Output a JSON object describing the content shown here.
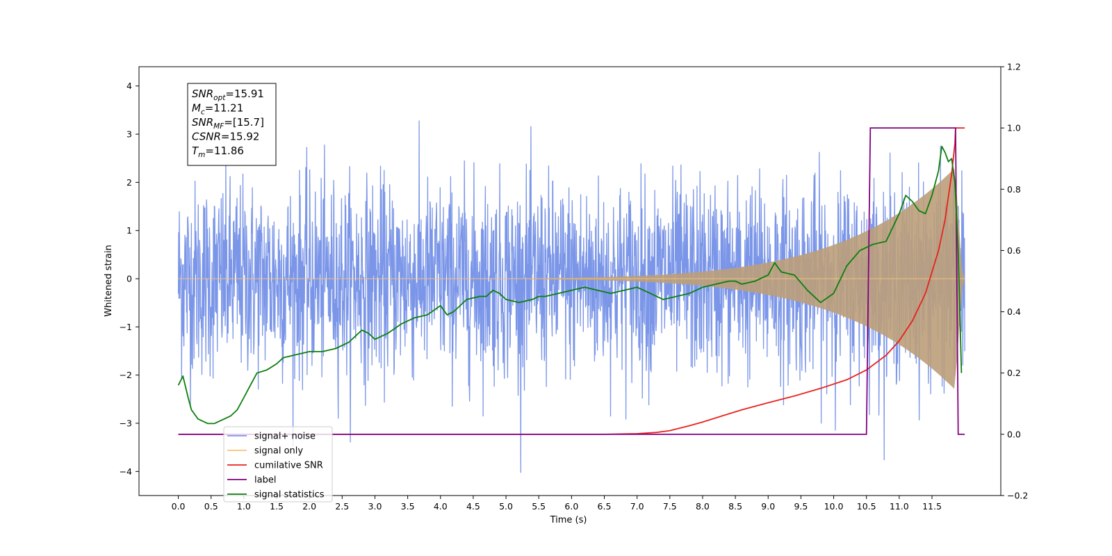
{
  "chart_data": {
    "type": "line",
    "xlabel": "Time (s)",
    "ylabel": "Whitened strain",
    "xlim": [
      -0.6,
      12.55
    ],
    "ylim": [
      -4.5,
      4.4
    ],
    "y2lim": [
      -0.2,
      1.2
    ],
    "x_ticks": [
      0.0,
      0.5,
      1.0,
      1.5,
      2.0,
      2.5,
      3.0,
      3.5,
      4.0,
      4.5,
      5.0,
      5.5,
      6.0,
      6.5,
      7.0,
      7.5,
      8.0,
      8.5,
      9.0,
      9.5,
      10.0,
      10.5,
      11.0,
      11.5
    ],
    "x_tick_labels": [
      "0.0",
      "0.5",
      "1.0",
      "1.5",
      "2.0",
      "2.5",
      "3.0",
      "3.5",
      "4.0",
      "4.5",
      "5.0",
      "5.5",
      "6.0",
      "6.5",
      "7.0",
      "7.5",
      "8.0",
      "8.5",
      "9.0",
      "9.5",
      "10.0",
      "10.5",
      "11.0",
      "11.5"
    ],
    "y_ticks": [
      -4,
      -3,
      -2,
      -1,
      0,
      1,
      2,
      3,
      4
    ],
    "y_tick_labels": [
      "−4",
      "−3",
      "−2",
      "−1",
      "0",
      "1",
      "2",
      "3",
      "4"
    ],
    "y2_ticks": [
      -0.2,
      0.0,
      0.2,
      0.4,
      0.6,
      0.8,
      1.0,
      1.2
    ],
    "y2_tick_labels": [
      "−0.2",
      "0.0",
      "0.2",
      "0.4",
      "0.6",
      "0.8",
      "1.0",
      "1.2"
    ],
    "grid": false,
    "legend_position": "lower-left",
    "annotation": {
      "lines": [
        {
          "name": "SNR",
          "sub": "opt",
          "value": "=15.91"
        },
        {
          "name": "M",
          "sub": "c",
          "value": "=11.21"
        },
        {
          "name": "SNR",
          "sub": "MF",
          "value": "=[15.7]"
        },
        {
          "name": "CSNR",
          "sub": "",
          "value": "=15.92"
        },
        {
          "name": "T",
          "sub": "m",
          "value": "=11.86"
        }
      ]
    },
    "series": [
      {
        "name": "signal+ noise",
        "color": "#7b96e8",
        "axis": "left",
        "description_values": {
          "x_start": 0.0,
          "x_end": 12.0,
          "typical_amplitude": 1.0,
          "max": 4.05,
          "min": -4.1
        }
      },
      {
        "name": "signal only",
        "color": "#f4c27a",
        "axis": "left",
        "description_values": {
          "x_start": 0.0,
          "x_end": 12.0,
          "peak_amplitude": 2.3,
          "peak_x": 11.85
        }
      },
      {
        "name": "cumilative SNR",
        "color": "#e8201c",
        "axis": "right",
        "x": [
          0.0,
          6.5,
          7.0,
          7.3,
          7.5,
          7.8,
          8.0,
          8.3,
          8.6,
          9.0,
          9.4,
          9.8,
          10.2,
          10.5,
          10.8,
          11.0,
          11.2,
          11.4,
          11.6,
          11.7,
          11.8,
          11.85,
          11.86,
          12.0
        ],
        "values": [
          0.0,
          0.0,
          0.002,
          0.006,
          0.012,
          0.028,
          0.04,
          0.06,
          0.08,
          0.103,
          0.125,
          0.15,
          0.178,
          0.21,
          0.258,
          0.305,
          0.37,
          0.46,
          0.6,
          0.7,
          0.85,
          0.95,
          1.0,
          1.0
        ]
      },
      {
        "name": "label",
        "color": "#800080",
        "axis": "right",
        "x": [
          0.0,
          10.5,
          10.56,
          11.86,
          11.9,
          12.0
        ],
        "values": [
          0.0,
          0.0,
          1.0,
          1.0,
          0.0,
          0.0
        ]
      },
      {
        "name": "signal statistics",
        "color": "#0c7d0c",
        "axis": "right",
        "x": [
          0.0,
          0.07,
          0.15,
          0.2,
          0.3,
          0.45,
          0.55,
          0.7,
          0.8,
          0.9,
          1.0,
          1.1,
          1.2,
          1.35,
          1.5,
          1.6,
          1.8,
          2.0,
          2.2,
          2.4,
          2.6,
          2.7,
          2.8,
          2.9,
          3.0,
          3.1,
          3.2,
          3.4,
          3.6,
          3.8,
          4.0,
          4.1,
          4.2,
          4.4,
          4.6,
          4.7,
          4.8,
          4.9,
          5.0,
          5.2,
          5.4,
          5.5,
          5.6,
          5.8,
          6.0,
          6.2,
          6.4,
          6.6,
          6.8,
          7.0,
          7.2,
          7.4,
          7.6,
          7.8,
          8.0,
          8.2,
          8.4,
          8.5,
          8.6,
          8.8,
          9.0,
          9.1,
          9.2,
          9.4,
          9.6,
          9.8,
          10.0,
          10.2,
          10.4,
          10.6,
          10.8,
          11.0,
          11.1,
          11.2,
          11.3,
          11.4,
          11.5,
          11.6,
          11.65,
          11.7,
          11.75,
          11.8,
          11.85,
          11.9,
          11.95
        ],
        "values": [
          0.16,
          0.19,
          0.12,
          0.08,
          0.05,
          0.035,
          0.035,
          0.05,
          0.06,
          0.08,
          0.12,
          0.16,
          0.2,
          0.21,
          0.23,
          0.25,
          0.26,
          0.27,
          0.27,
          0.28,
          0.3,
          0.32,
          0.34,
          0.33,
          0.31,
          0.32,
          0.33,
          0.36,
          0.38,
          0.39,
          0.42,
          0.39,
          0.4,
          0.44,
          0.45,
          0.45,
          0.47,
          0.46,
          0.44,
          0.43,
          0.44,
          0.45,
          0.45,
          0.46,
          0.47,
          0.48,
          0.47,
          0.46,
          0.47,
          0.48,
          0.46,
          0.44,
          0.45,
          0.46,
          0.48,
          0.49,
          0.5,
          0.5,
          0.49,
          0.5,
          0.52,
          0.56,
          0.53,
          0.52,
          0.47,
          0.43,
          0.46,
          0.55,
          0.6,
          0.62,
          0.63,
          0.72,
          0.78,
          0.76,
          0.73,
          0.72,
          0.78,
          0.86,
          0.94,
          0.92,
          0.89,
          0.9,
          0.82,
          0.6,
          0.2
        ]
      }
    ]
  }
}
